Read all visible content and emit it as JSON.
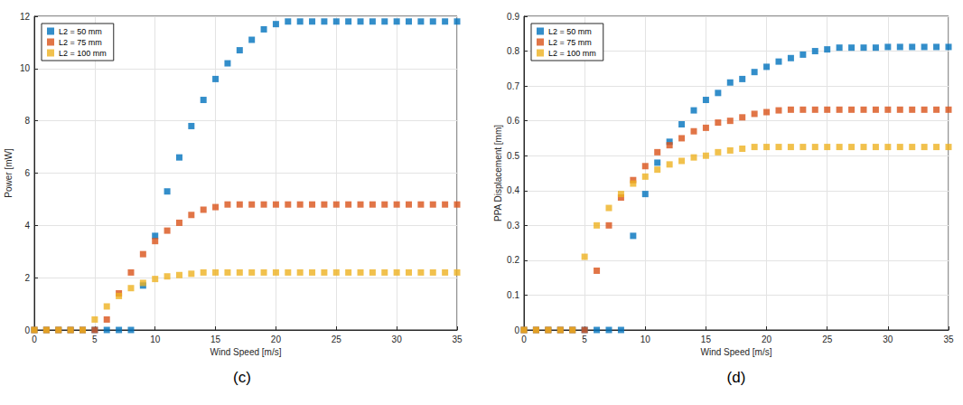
{
  "chart_data": [
    {
      "type": "scatter",
      "title": "(c)",
      "x_label": "Wind Speed [m/s]",
      "y_label": "Power [mW]",
      "x": [
        0,
        1,
        2,
        3,
        4,
        5,
        6,
        7,
        8,
        9,
        10,
        11,
        12,
        13,
        14,
        15,
        16,
        17,
        18,
        19,
        20,
        21,
        22,
        23,
        24,
        25,
        26,
        27,
        28,
        29,
        30,
        31,
        32,
        33,
        34,
        35
      ],
      "series": [
        {
          "name": "L2 = 50 mm",
          "color": "#0072BD",
          "values": [
            0,
            0,
            0,
            0,
            0,
            0,
            0,
            0,
            0,
            1.7,
            3.6,
            5.3,
            6.6,
            7.8,
            8.8,
            9.6,
            10.2,
            10.7,
            11.1,
            11.5,
            11.7,
            11.8,
            11.8,
            11.8,
            11.8,
            11.8,
            11.8,
            11.8,
            11.8,
            11.8,
            11.8,
            11.8,
            11.8,
            11.8,
            11.8,
            11.8
          ]
        },
        {
          "name": "L2 = 75 mm",
          "color": "#D95319",
          "values": [
            0,
            0,
            0,
            0,
            0,
            0,
            0.4,
            1.4,
            2.2,
            2.9,
            3.4,
            3.8,
            4.1,
            4.4,
            4.6,
            4.7,
            4.8,
            4.8,
            4.8,
            4.8,
            4.8,
            4.8,
            4.8,
            4.8,
            4.8,
            4.8,
            4.8,
            4.8,
            4.8,
            4.8,
            4.8,
            4.8,
            4.8,
            4.8,
            4.8,
            4.8
          ]
        },
        {
          "name": "L2 = 100 mm",
          "color": "#EDB120",
          "values": [
            0,
            0,
            0,
            0,
            0,
            0.4,
            0.9,
            1.3,
            1.6,
            1.8,
            1.95,
            2.05,
            2.1,
            2.15,
            2.2,
            2.2,
            2.2,
            2.2,
            2.2,
            2.2,
            2.2,
            2.2,
            2.2,
            2.2,
            2.2,
            2.2,
            2.2,
            2.2,
            2.2,
            2.2,
            2.2,
            2.2,
            2.2,
            2.2,
            2.2,
            2.2
          ]
        }
      ],
      "xlim": [
        0,
        35
      ],
      "xticks": [
        0,
        5,
        10,
        15,
        20,
        25,
        30,
        35
      ],
      "ylim": [
        0,
        12
      ],
      "yticks": [
        0,
        2,
        4,
        6,
        8,
        10,
        12
      ],
      "grid": true,
      "legend": "upper left",
      "marker": "square"
    },
    {
      "type": "scatter",
      "title": "(d)",
      "x_label": "Wind Speed [m/s]",
      "y_label": "PPA Displacement [mm]",
      "x": [
        0,
        1,
        2,
        3,
        4,
        5,
        6,
        7,
        8,
        9,
        10,
        11,
        12,
        13,
        14,
        15,
        16,
        17,
        18,
        19,
        20,
        21,
        22,
        23,
        24,
        25,
        26,
        27,
        28,
        29,
        30,
        31,
        32,
        33,
        34,
        35
      ],
      "series": [
        {
          "name": "L2 = 50 mm",
          "color": "#0072BD",
          "values": [
            0,
            0,
            0,
            0,
            0,
            0,
            0,
            0,
            0,
            0.27,
            0.39,
            0.48,
            0.54,
            0.59,
            0.63,
            0.66,
            0.68,
            0.71,
            0.72,
            0.74,
            0.755,
            0.77,
            0.78,
            0.79,
            0.8,
            0.805,
            0.81,
            0.81,
            0.81,
            0.81,
            0.812,
            0.812,
            0.812,
            0.812,
            0.812,
            0.812
          ]
        },
        {
          "name": "L2 = 75 mm",
          "color": "#D95319",
          "values": [
            0,
            0,
            0,
            0,
            0,
            0,
            0.17,
            0.3,
            0.38,
            0.43,
            0.47,
            0.51,
            0.53,
            0.55,
            0.57,
            0.58,
            0.595,
            0.6,
            0.61,
            0.62,
            0.625,
            0.63,
            0.632,
            0.632,
            0.632,
            0.632,
            0.632,
            0.632,
            0.632,
            0.632,
            0.632,
            0.632,
            0.632,
            0.632,
            0.632,
            0.632
          ]
        },
        {
          "name": "L2 = 100 mm",
          "color": "#EDB120",
          "values": [
            0,
            0,
            0,
            0,
            0,
            0.21,
            0.3,
            0.35,
            0.39,
            0.42,
            0.44,
            0.46,
            0.475,
            0.485,
            0.495,
            0.5,
            0.51,
            0.515,
            0.52,
            0.525,
            0.525,
            0.525,
            0.525,
            0.525,
            0.525,
            0.525,
            0.525,
            0.525,
            0.525,
            0.525,
            0.525,
            0.525,
            0.525,
            0.525,
            0.525,
            0.525
          ]
        }
      ],
      "xlim": [
        0,
        35
      ],
      "xticks": [
        0,
        5,
        10,
        15,
        20,
        25,
        30,
        35
      ],
      "ylim": [
        0,
        0.9
      ],
      "yticks": [
        0,
        0.1,
        0.2,
        0.3,
        0.4,
        0.5,
        0.6,
        0.7,
        0.8,
        0.9
      ],
      "grid": true,
      "legend": "upper left",
      "marker": "square"
    }
  ]
}
